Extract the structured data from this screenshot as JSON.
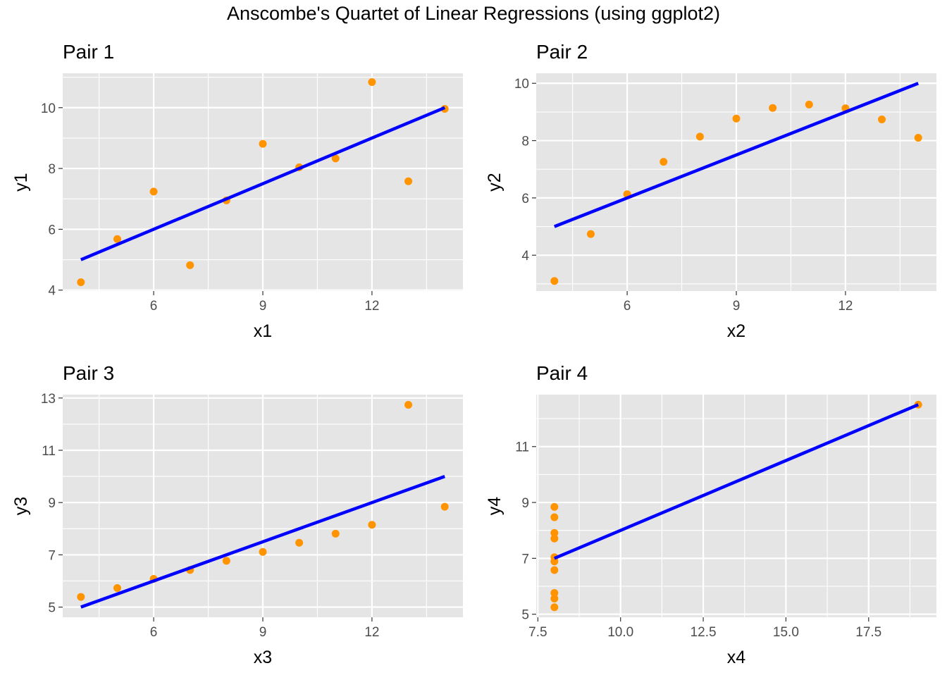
{
  "title": "Anscombe's Quartet of Linear Regressions (using ggplot2)",
  "colors": {
    "points": "#FF9400",
    "line": "#0000FF",
    "panel": "#E5E5E5",
    "grid": "#FFFFFF"
  },
  "chart_data": [
    {
      "type": "scatter",
      "title": "Pair 1",
      "xlabel": "x1",
      "ylabel": "y1",
      "x": [
        10,
        8,
        13,
        9,
        11,
        14,
        6,
        4,
        12,
        7,
        5
      ],
      "y": [
        8.04,
        6.95,
        7.58,
        8.81,
        8.33,
        9.96,
        7.24,
        4.26,
        10.84,
        4.82,
        5.68
      ],
      "xlim": [
        3.5,
        14.5
      ],
      "ylim": [
        3.97,
        11.13
      ],
      "xticks": [
        6,
        9,
        12
      ],
      "yticks": [
        4,
        6,
        8,
        10
      ],
      "xtick_labels": [
        "6",
        "9",
        "12"
      ],
      "ytick_labels": [
        "4",
        "6",
        "8",
        "10"
      ],
      "fit": {
        "x": [
          4,
          14
        ],
        "y": [
          5.0,
          10.0
        ]
      },
      "grid": true
    },
    {
      "type": "scatter",
      "title": "Pair 2",
      "xlabel": "x2",
      "ylabel": "y2",
      "x": [
        10,
        8,
        13,
        9,
        11,
        14,
        6,
        4,
        12,
        7,
        5
      ],
      "y": [
        9.14,
        8.14,
        8.74,
        8.77,
        9.26,
        8.1,
        6.13,
        3.1,
        9.13,
        7.26,
        4.74
      ],
      "xlim": [
        3.5,
        14.5
      ],
      "ylim": [
        2.75,
        10.35
      ],
      "xticks": [
        6,
        9,
        12
      ],
      "yticks": [
        4,
        6,
        8,
        10
      ],
      "xtick_labels": [
        "6",
        "9",
        "12"
      ],
      "ytick_labels": [
        "4",
        "6",
        "8",
        "10"
      ],
      "fit": {
        "x": [
          4,
          14
        ],
        "y": [
          5.0,
          10.0
        ]
      },
      "grid": true
    },
    {
      "type": "scatter",
      "title": "Pair 3",
      "xlabel": "x3",
      "ylabel": "y3",
      "x": [
        10,
        8,
        13,
        9,
        11,
        14,
        6,
        4,
        12,
        7,
        5
      ],
      "y": [
        7.46,
        6.77,
        12.74,
        7.11,
        7.81,
        8.84,
        6.08,
        5.39,
        8.15,
        6.42,
        5.73
      ],
      "xlim": [
        3.5,
        14.5
      ],
      "ylim": [
        4.61,
        13.13
      ],
      "xticks": [
        6,
        9,
        12
      ],
      "yticks": [
        5,
        7,
        9,
        11,
        13
      ],
      "xtick_labels": [
        "6",
        "9",
        "12"
      ],
      "ytick_labels": [
        "5",
        "7",
        "9",
        "11",
        "13"
      ],
      "fit": {
        "x": [
          4,
          14
        ],
        "y": [
          5.0,
          10.0
        ]
      },
      "grid": true
    },
    {
      "type": "scatter",
      "title": "Pair 4",
      "xlabel": "x4",
      "ylabel": "y4",
      "x": [
        8,
        8,
        8,
        8,
        8,
        8,
        8,
        19,
        8,
        8,
        8
      ],
      "y": [
        6.58,
        5.76,
        7.71,
        8.84,
        8.47,
        7.04,
        5.25,
        12.5,
        5.56,
        7.91,
        6.89
      ],
      "xlim": [
        7.45,
        19.55
      ],
      "ylim": [
        4.89,
        12.86
      ],
      "xticks": [
        7.5,
        10,
        12.5,
        15,
        17.5
      ],
      "yticks": [
        5,
        7,
        9,
        11
      ],
      "xtick_labels": [
        "7.5",
        "10.0",
        "12.5",
        "15.0",
        "17.5"
      ],
      "ytick_labels": [
        "5",
        "7",
        "9",
        "11"
      ],
      "fit": {
        "x": [
          8,
          19
        ],
        "y": [
          7.0,
          12.5
        ]
      },
      "grid": true
    }
  ]
}
